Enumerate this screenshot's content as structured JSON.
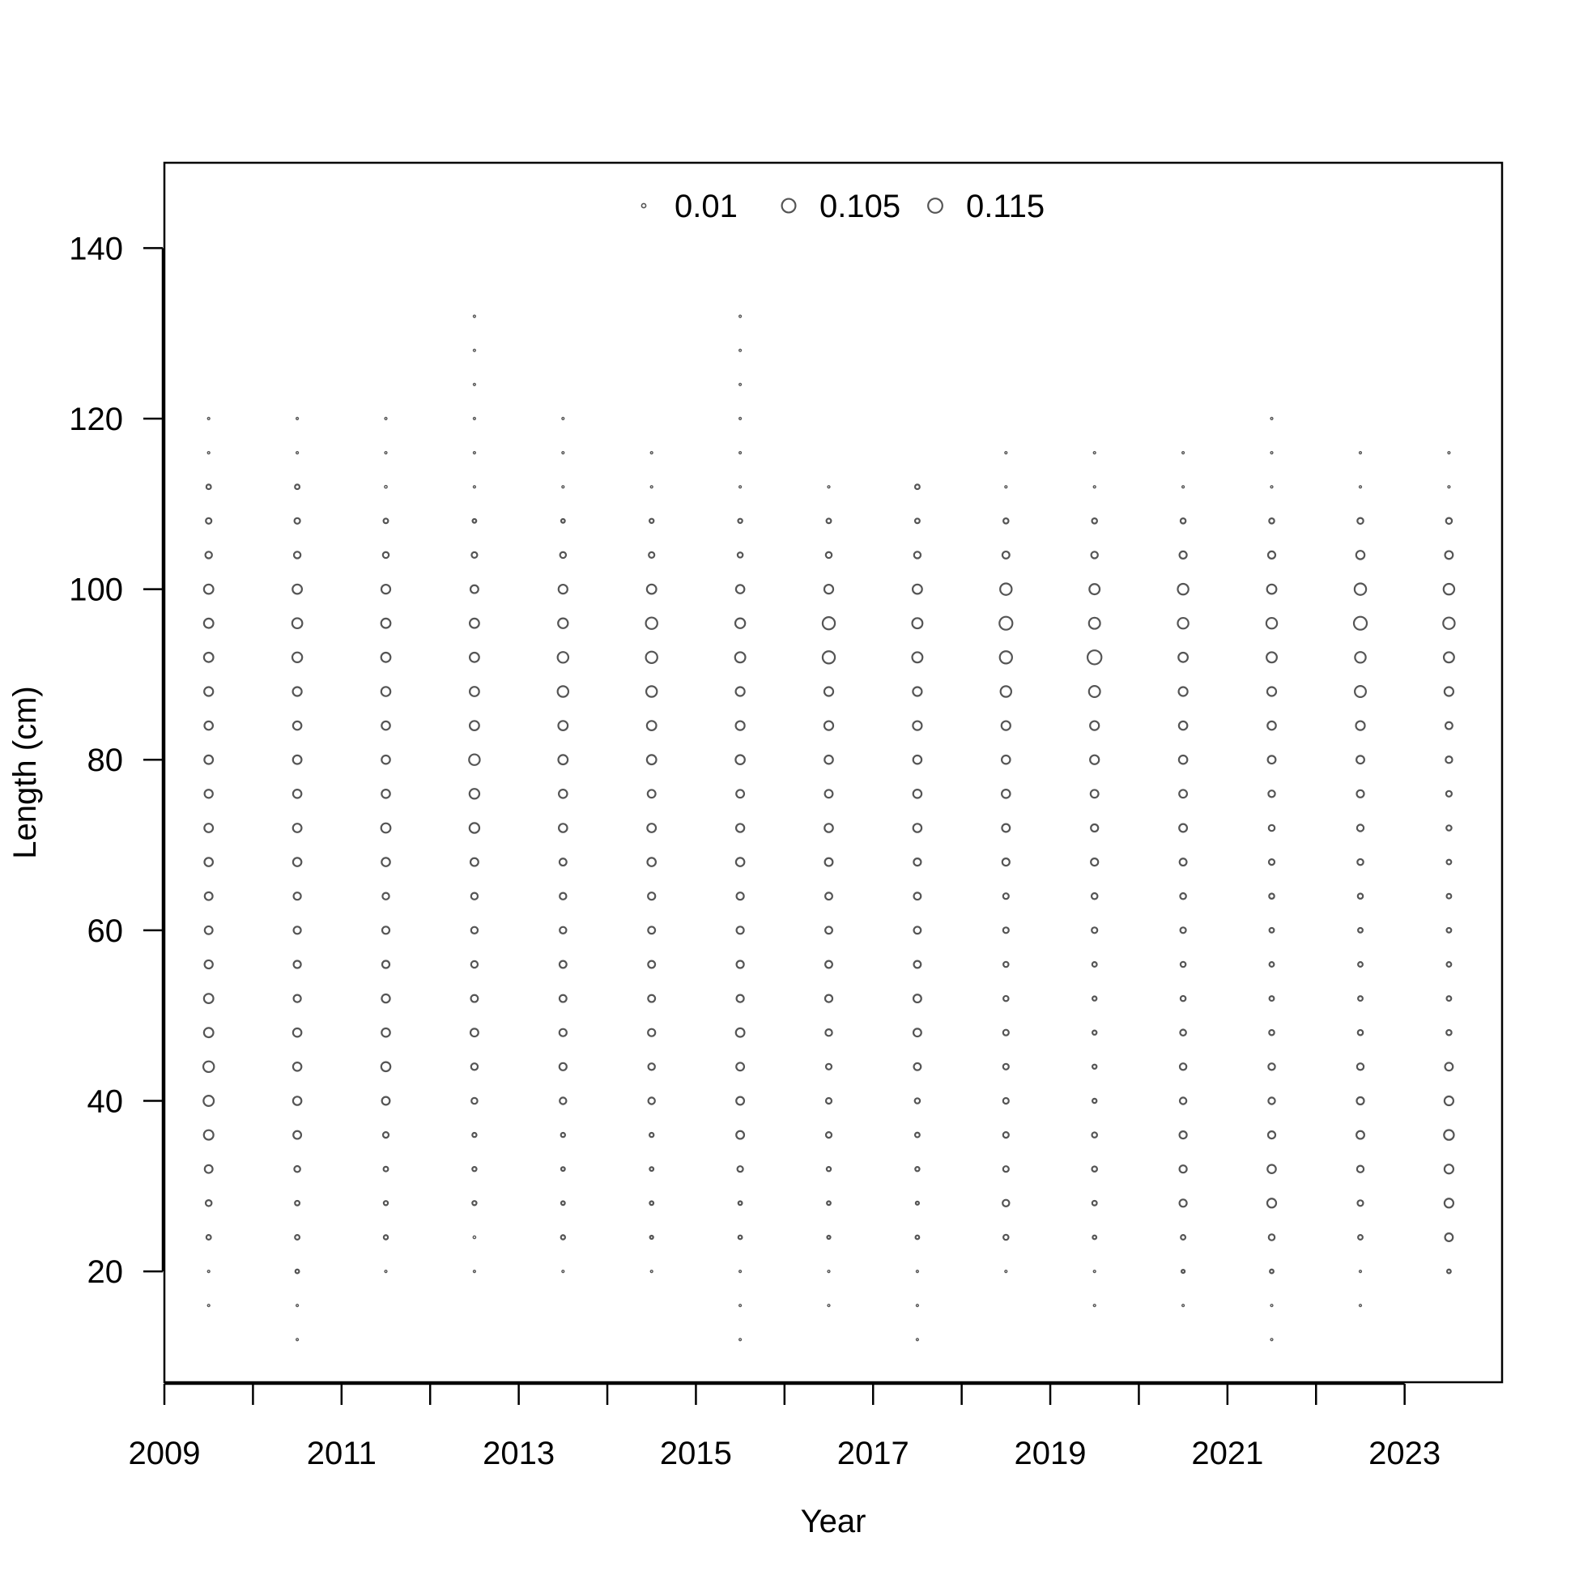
{
  "chart_data": {
    "type": "scatter",
    "title": "",
    "xlabel": "Year",
    "ylabel": "Length (cm)",
    "xlim": [
      2009,
      2024.1
    ],
    "ylim": [
      7,
      150
    ],
    "xticks": [
      "2009",
      "2011",
      "2013",
      "2015",
      "2017",
      "2019",
      "2021",
      "2023"
    ],
    "yticks": [
      "20",
      "40",
      "60",
      "80",
      "100",
      "120",
      "140"
    ],
    "legend": {
      "placement": "top",
      "entries": [
        {
          "label": "0.01",
          "value": 0.01
        },
        {
          "label": "0.105",
          "value": 0.105
        },
        {
          "label": "0.115",
          "value": 0.115
        }
      ]
    },
    "grid": false,
    "marker": "open circle, area proportional to proportion",
    "colors": {
      "marker": "#555555",
      "axis": "#000000",
      "background": "#ffffff"
    },
    "years": [
      2009.5,
      2010.5,
      2011.5,
      2012.5,
      2013.5,
      2014.5,
      2015.5,
      2016.5,
      2017.5,
      2018.5,
      2019.5,
      2020.5,
      2021.5,
      2022.5,
      2023.5
    ],
    "lengths": [
      12,
      16,
      20,
      24,
      28,
      32,
      36,
      40,
      44,
      48,
      52,
      56,
      60,
      64,
      68,
      72,
      76,
      80,
      84,
      88,
      92,
      96,
      100,
      104,
      108,
      112,
      116,
      120,
      124,
      128,
      132
    ],
    "proportions": [
      [
        0,
        0.002,
        0.002,
        0.012,
        0.02,
        0.035,
        0.052,
        0.06,
        0.065,
        0.05,
        0.05,
        0.038,
        0.035,
        0.035,
        0.04,
        0.042,
        0.038,
        0.042,
        0.04,
        0.045,
        0.05,
        0.05,
        0.05,
        0.025,
        0.018,
        0.012,
        0.003,
        0.002,
        0,
        0,
        0
      ],
      [
        0.002,
        0.002,
        0.008,
        0.012,
        0.012,
        0.02,
        0.035,
        0.04,
        0.04,
        0.04,
        0.03,
        0.03,
        0.03,
        0.03,
        0.04,
        0.042,
        0.04,
        0.042,
        0.04,
        0.045,
        0.055,
        0.058,
        0.05,
        0.025,
        0.018,
        0.012,
        0.003,
        0.002,
        0,
        0,
        0
      ],
      [
        0,
        0,
        0.002,
        0.01,
        0.01,
        0.012,
        0.018,
        0.035,
        0.048,
        0.04,
        0.038,
        0.03,
        0.03,
        0.025,
        0.04,
        0.05,
        0.04,
        0.04,
        0.04,
        0.048,
        0.05,
        0.05,
        0.045,
        0.02,
        0.012,
        0.004,
        0.002,
        0.002,
        0,
        0,
        0
      ],
      [
        0,
        0,
        0.002,
        0.004,
        0.01,
        0.01,
        0.01,
        0.02,
        0.025,
        0.035,
        0.028,
        0.025,
        0.025,
        0.025,
        0.035,
        0.055,
        0.055,
        0.065,
        0.05,
        0.05,
        0.05,
        0.05,
        0.035,
        0.018,
        0.008,
        0.003,
        0.002,
        0.002,
        0.002,
        0.002,
        0.002
      ],
      [
        0,
        0,
        0.002,
        0.01,
        0.008,
        0.008,
        0.01,
        0.025,
        0.03,
        0.03,
        0.028,
        0.028,
        0.025,
        0.025,
        0.028,
        0.04,
        0.04,
        0.05,
        0.05,
        0.065,
        0.065,
        0.055,
        0.045,
        0.02,
        0.008,
        0.003,
        0.002,
        0.002,
        0,
        0,
        0
      ],
      [
        0,
        0,
        0.002,
        0.006,
        0.008,
        0.008,
        0.01,
        0.025,
        0.025,
        0.03,
        0.028,
        0.028,
        0.028,
        0.03,
        0.04,
        0.042,
        0.035,
        0.05,
        0.05,
        0.065,
        0.075,
        0.075,
        0.05,
        0.018,
        0.01,
        0.003,
        0.002,
        0,
        0,
        0,
        0
      ],
      [
        0.002,
        0.002,
        0.002,
        0.008,
        0.008,
        0.018,
        0.035,
        0.035,
        0.035,
        0.042,
        0.03,
        0.03,
        0.03,
        0.03,
        0.04,
        0.038,
        0.035,
        0.048,
        0.045,
        0.045,
        0.06,
        0.055,
        0.04,
        0.015,
        0.01,
        0.003,
        0.002,
        0.002,
        0.002,
        0.002,
        0.002
      ],
      [
        0,
        0.002,
        0.002,
        0.006,
        0.008,
        0.01,
        0.018,
        0.018,
        0.018,
        0.025,
        0.03,
        0.028,
        0.028,
        0.028,
        0.035,
        0.04,
        0.035,
        0.04,
        0.045,
        0.045,
        0.085,
        0.085,
        0.045,
        0.02,
        0.012,
        0.003,
        0,
        0,
        0,
        0,
        0
      ],
      [
        0.002,
        0.002,
        0.002,
        0.008,
        0.006,
        0.01,
        0.012,
        0.015,
        0.028,
        0.035,
        0.035,
        0.028,
        0.028,
        0.028,
        0.03,
        0.04,
        0.04,
        0.04,
        0.045,
        0.045,
        0.06,
        0.06,
        0.05,
        0.025,
        0.012,
        0.012,
        0,
        0,
        0,
        0,
        0
      ],
      [
        0,
        0,
        0.002,
        0.015,
        0.025,
        0.018,
        0.018,
        0.018,
        0.018,
        0.018,
        0.015,
        0.015,
        0.018,
        0.018,
        0.03,
        0.035,
        0.04,
        0.04,
        0.045,
        0.065,
        0.085,
        0.095,
        0.075,
        0.028,
        0.015,
        0.003,
        0.002,
        0,
        0,
        0,
        0
      ],
      [
        0,
        0.002,
        0.002,
        0.008,
        0.012,
        0.015,
        0.015,
        0.01,
        0.01,
        0.01,
        0.01,
        0.012,
        0.018,
        0.02,
        0.03,
        0.03,
        0.035,
        0.045,
        0.045,
        0.07,
        0.11,
        0.07,
        0.06,
        0.025,
        0.015,
        0.003,
        0.002,
        0,
        0,
        0,
        0
      ],
      [
        0,
        0.002,
        0.006,
        0.012,
        0.03,
        0.03,
        0.03,
        0.025,
        0.025,
        0.02,
        0.015,
        0.015,
        0.018,
        0.02,
        0.028,
        0.035,
        0.035,
        0.04,
        0.04,
        0.045,
        0.05,
        0.065,
        0.065,
        0.03,
        0.015,
        0.003,
        0.002,
        0,
        0,
        0,
        0
      ],
      [
        0.002,
        0.002,
        0.008,
        0.02,
        0.045,
        0.04,
        0.03,
        0.025,
        0.025,
        0.015,
        0.012,
        0.012,
        0.012,
        0.015,
        0.018,
        0.02,
        0.025,
        0.035,
        0.04,
        0.045,
        0.06,
        0.065,
        0.05,
        0.03,
        0.015,
        0.003,
        0.002,
        0.002,
        0,
        0,
        0
      ],
      [
        0,
        0.002,
        0.002,
        0.012,
        0.018,
        0.025,
        0.035,
        0.03,
        0.025,
        0.015,
        0.012,
        0.012,
        0.012,
        0.015,
        0.02,
        0.025,
        0.03,
        0.035,
        0.045,
        0.07,
        0.065,
        0.095,
        0.075,
        0.04,
        0.02,
        0.003,
        0.002,
        0,
        0,
        0,
        0
      ],
      [
        0,
        0,
        0.008,
        0.035,
        0.045,
        0.045,
        0.055,
        0.045,
        0.035,
        0.015,
        0.012,
        0.012,
        0.012,
        0.012,
        0.012,
        0.015,
        0.018,
        0.025,
        0.028,
        0.045,
        0.06,
        0.075,
        0.065,
        0.035,
        0.02,
        0.003,
        0.002,
        0,
        0,
        0,
        0
      ]
    ]
  }
}
